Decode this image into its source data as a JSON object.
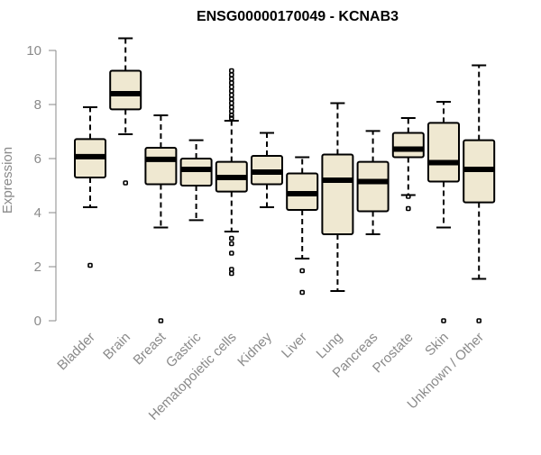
{
  "chart_data": {
    "type": "boxplot",
    "title": "ENSG00000170049 - KCNAB3",
    "xlabel": "",
    "ylabel": "Expression",
    "ylim": [
      0,
      10
    ],
    "yticks": [
      0,
      2,
      4,
      6,
      8,
      10
    ],
    "box_fill": "#efe8d1",
    "categories": [
      "Bladder",
      "Brain",
      "Breast",
      "Gastric",
      "Hematopoietic cells",
      "Kidney",
      "Liver",
      "Lung",
      "Pancreas",
      "Prostate",
      "Skin",
      "Unknown / Other"
    ],
    "series": [
      {
        "name": "Bladder",
        "whisker_low": 4.2,
        "q1": 5.3,
        "median": 6.07,
        "q3": 6.72,
        "whisker_high": 7.9,
        "outliers": [
          2.05
        ]
      },
      {
        "name": "Brain",
        "whisker_low": 6.9,
        "q1": 7.82,
        "median": 8.4,
        "q3": 9.25,
        "whisker_high": 10.45,
        "outliers": [
          5.1
        ]
      },
      {
        "name": "Breast",
        "whisker_low": 3.45,
        "q1": 5.05,
        "median": 5.97,
        "q3": 6.4,
        "whisker_high": 7.6,
        "outliers": [
          0.0
        ]
      },
      {
        "name": "Gastric",
        "whisker_low": 3.72,
        "q1": 5.0,
        "median": 5.6,
        "q3": 6.0,
        "whisker_high": 6.68,
        "outliers": []
      },
      {
        "name": "Hematopoietic cells",
        "whisker_low": 3.3,
        "q1": 4.78,
        "median": 5.3,
        "q3": 5.88,
        "whisker_high": 7.4,
        "outliers": [
          1.75,
          1.9,
          2.5,
          2.85,
          3.05,
          7.5,
          7.6,
          7.75,
          7.9,
          8.05,
          8.2,
          8.35,
          8.5,
          8.65,
          8.8,
          8.95,
          9.1,
          9.25
        ]
      },
      {
        "name": "Kidney",
        "whisker_low": 4.2,
        "q1": 5.05,
        "median": 5.5,
        "q3": 6.1,
        "whisker_high": 6.95,
        "outliers": []
      },
      {
        "name": "Liver",
        "whisker_low": 2.3,
        "q1": 4.1,
        "median": 4.7,
        "q3": 5.45,
        "whisker_high": 6.05,
        "outliers": [
          1.85,
          1.05
        ]
      },
      {
        "name": "Lung",
        "whisker_low": 1.1,
        "q1": 3.2,
        "median": 5.2,
        "q3": 6.15,
        "whisker_high": 8.05,
        "outliers": []
      },
      {
        "name": "Pancreas",
        "whisker_low": 3.2,
        "q1": 4.05,
        "median": 5.15,
        "q3": 5.88,
        "whisker_high": 7.02,
        "outliers": []
      },
      {
        "name": "Prostate",
        "whisker_low": 4.65,
        "q1": 6.05,
        "median": 6.35,
        "q3": 6.95,
        "whisker_high": 7.5,
        "outliers": [
          4.15,
          4.6
        ]
      },
      {
        "name": "Skin",
        "whisker_low": 3.45,
        "q1": 5.15,
        "median": 5.85,
        "q3": 7.32,
        "whisker_high": 8.1,
        "outliers": [
          0.0
        ]
      },
      {
        "name": "Unknown / Other",
        "whisker_low": 1.55,
        "q1": 4.38,
        "median": 5.6,
        "q3": 6.68,
        "whisker_high": 9.45,
        "outliers": [
          0.0
        ]
      }
    ]
  }
}
